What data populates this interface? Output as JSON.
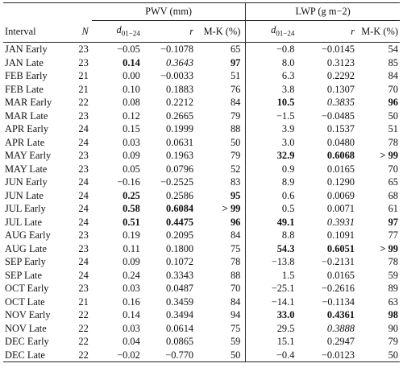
{
  "header": {
    "pwv_group": "PWV (mm)",
    "lwp_group": "LWP (g m−2)",
    "col_interval": "Interval",
    "col_n": "N",
    "col_d_prefix": "d",
    "col_d_sub": "01−24",
    "col_r": "r",
    "col_mk": "M-K (%)"
  },
  "rows": [
    {
      "interval": "JAN Early",
      "n": "23",
      "pwv_d": "−0.05",
      "pwv_r": "−0.1078",
      "pwv_mk": "65",
      "lwp_d": "−0.8",
      "lwp_r": "−0.0145",
      "lwp_mk": "54"
    },
    {
      "interval": "JAN Late",
      "n": "23",
      "pwv_d": "0.14",
      "pwv_r": "0.3643",
      "pwv_mk": "97",
      "lwp_d": "8.0",
      "lwp_r": "0.3123",
      "lwp_mk": "85"
    },
    {
      "interval": "FEB Early",
      "n": "21",
      "pwv_d": "0.00",
      "pwv_r": "−0.0033",
      "pwv_mk": "51",
      "lwp_d": "6.3",
      "lwp_r": "0.2292",
      "lwp_mk": "84"
    },
    {
      "interval": "FEB Late",
      "n": "21",
      "pwv_d": "0.10",
      "pwv_r": "0.1883",
      "pwv_mk": "76",
      "lwp_d": "3.8",
      "lwp_r": "0.1307",
      "lwp_mk": "70"
    },
    {
      "interval": "MAR Early",
      "n": "22",
      "pwv_d": "0.08",
      "pwv_r": "0.2212",
      "pwv_mk": "84",
      "lwp_d": "10.5",
      "lwp_r": "0.3835",
      "lwp_mk": "96"
    },
    {
      "interval": "MAR Late",
      "n": "23",
      "pwv_d": "0.12",
      "pwv_r": "0.2665",
      "pwv_mk": "79",
      "lwp_d": "−1.5",
      "lwp_r": "−0.0485",
      "lwp_mk": "50"
    },
    {
      "interval": "APR Early",
      "n": "24",
      "pwv_d": "0.15",
      "pwv_r": "0.1999",
      "pwv_mk": "88",
      "lwp_d": "3.9",
      "lwp_r": "0.1537",
      "lwp_mk": "51"
    },
    {
      "interval": "APR Late",
      "n": "24",
      "pwv_d": "0.03",
      "pwv_r": "0.0631",
      "pwv_mk": "50",
      "lwp_d": "3.0",
      "lwp_r": "0.0480",
      "lwp_mk": "78"
    },
    {
      "interval": "MAY Early",
      "n": "23",
      "pwv_d": "0.09",
      "pwv_r": "0.1963",
      "pwv_mk": "79",
      "lwp_d": "32.9",
      "lwp_r": "0.6068",
      "lwp_mk": "> 99"
    },
    {
      "interval": "MAY Late",
      "n": "23",
      "pwv_d": "0.05",
      "pwv_r": "0.0796",
      "pwv_mk": "52",
      "lwp_d": "0.9",
      "lwp_r": "0.0165",
      "lwp_mk": "70"
    },
    {
      "interval": "JUN Early",
      "n": "24",
      "pwv_d": "−0.16",
      "pwv_r": "−0.2525",
      "pwv_mk": "83",
      "lwp_d": "8.9",
      "lwp_r": "0.1290",
      "lwp_mk": "65"
    },
    {
      "interval": "JUN Late",
      "n": "24",
      "pwv_d": "0.25",
      "pwv_r": "0.2586",
      "pwv_mk": "95",
      "lwp_d": "0.6",
      "lwp_r": "0.0069",
      "lwp_mk": "68"
    },
    {
      "interval": "JUL Early",
      "n": "24",
      "pwv_d": "0.58",
      "pwv_r": "0.6084",
      "pwv_mk": "> 99",
      "lwp_d": "0.5",
      "lwp_r": "0.0071",
      "lwp_mk": "61"
    },
    {
      "interval": "JUL Late",
      "n": "24",
      "pwv_d": "0.51",
      "pwv_r": "0.4475",
      "pwv_mk": "96",
      "lwp_d": "49.1",
      "lwp_r": "0.3931",
      "lwp_mk": "97"
    },
    {
      "interval": "AUG Early",
      "n": "23",
      "pwv_d": "0.19",
      "pwv_r": "0.2095",
      "pwv_mk": "84",
      "lwp_d": "8.8",
      "lwp_r": "0.1091",
      "lwp_mk": "77"
    },
    {
      "interval": "AUG Late",
      "n": "23",
      "pwv_d": "0.11",
      "pwv_r": "0.1800",
      "pwv_mk": "75",
      "lwp_d": "54.3",
      "lwp_r": "0.6051",
      "lwp_mk": "> 99"
    },
    {
      "interval": "SEP Early",
      "n": "24",
      "pwv_d": "0.09",
      "pwv_r": "0.1072",
      "pwv_mk": "78",
      "lwp_d": "−13.8",
      "lwp_r": "−0.2131",
      "lwp_mk": "78"
    },
    {
      "interval": "SEP Late",
      "n": "24",
      "pwv_d": "0.24",
      "pwv_r": "0.3343",
      "pwv_mk": "88",
      "lwp_d": "1.5",
      "lwp_r": "0.0165",
      "lwp_mk": "59"
    },
    {
      "interval": "OCT Early",
      "n": "23",
      "pwv_d": "0.03",
      "pwv_r": "0.0487",
      "pwv_mk": "70",
      "lwp_d": "−25.1",
      "lwp_r": "−0.2616",
      "lwp_mk": "89"
    },
    {
      "interval": "OCT Late",
      "n": "21",
      "pwv_d": "0.16",
      "pwv_r": "0.3459",
      "pwv_mk": "84",
      "lwp_d": "−14.1",
      "lwp_r": "−0.1134",
      "lwp_mk": "63"
    },
    {
      "interval": "NOV Early",
      "n": "22",
      "pwv_d": "0.14",
      "pwv_r": "0.3494",
      "pwv_mk": "94",
      "lwp_d": "33.0",
      "lwp_r": "0.4361",
      "lwp_mk": "98"
    },
    {
      "interval": "NOV Late",
      "n": "22",
      "pwv_d": "0.03",
      "pwv_r": "0.0614",
      "pwv_mk": "75",
      "lwp_d": "29.5",
      "lwp_r": "0.3888",
      "lwp_mk": "90"
    },
    {
      "interval": "DEC Early",
      "n": "22",
      "pwv_d": "0.04",
      "pwv_r": "0.0865",
      "pwv_mk": "59",
      "lwp_d": "15.1",
      "lwp_r": "0.2947",
      "lwp_mk": "79"
    },
    {
      "interval": "DEC Late",
      "n": "22",
      "pwv_d": "−0.02",
      "pwv_r": "−0.770",
      "pwv_mk": "50",
      "lwp_d": "−0.4",
      "lwp_r": "−0.0123",
      "lwp_mk": "50"
    }
  ]
}
